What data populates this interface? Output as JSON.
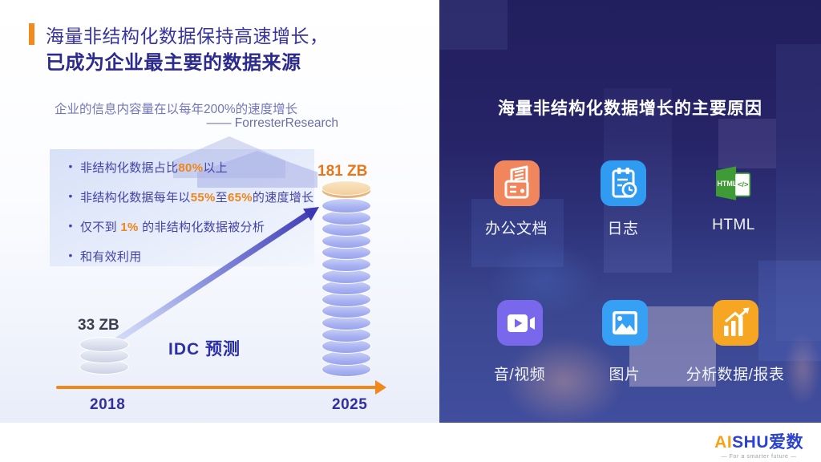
{
  "left": {
    "title_line1": "海量非结构化数据保持高速增长，",
    "title_line2": "已成为企业最主要的数据来源",
    "quote": "企业的信息内容量在以每年200%的速度增长",
    "quote_source": "—— ForresterResearch",
    "bullets": [
      [
        {
          "text": "非结构化数据占比"
        },
        {
          "text": "80%",
          "highlight": true
        },
        {
          "text": "以上"
        }
      ],
      [
        {
          "text": "非结构化数据每年以"
        },
        {
          "text": "55%",
          "highlight": true
        },
        {
          "text": "至"
        },
        {
          "text": "65%",
          "highlight": true
        },
        {
          "text": "的速度增长"
        }
      ],
      [
        {
          "text": "仅不到 "
        },
        {
          "text": "1%",
          "highlight": true
        },
        {
          "text": " 的非结构化数据被分析"
        }
      ],
      [
        {
          "text": "和有效利用"
        }
      ]
    ]
  },
  "chart_data": {
    "type": "bar",
    "title": "IDC 预测",
    "categories": [
      "2018",
      "2025"
    ],
    "values": [
      33,
      181
    ],
    "unit": "ZB",
    "value_labels": [
      "33 ZB",
      "181 ZB"
    ],
    "annotation": "企业的信息内容量在以每年200%的速度增长",
    "source": "—— ForresterResearch",
    "bar_style": "stacked-disk-cylinder",
    "cylinders": {
      "small": {
        "disks": 3,
        "cap": false
      },
      "big": {
        "disks": 15,
        "cap": true
      }
    },
    "xlabel": "",
    "ylabel": "",
    "legend": false,
    "grid": false
  },
  "right": {
    "title": "海量非结构化数据增长的主要原因",
    "reasons": [
      {
        "label": "办公文档",
        "icon": "office-doc-icon",
        "color": "#f1865c"
      },
      {
        "label": "日志",
        "icon": "log-icon",
        "color": "#2f9cf1"
      },
      {
        "label": "HTML",
        "icon": "html-icon",
        "color": "#3e9b35"
      },
      {
        "label": "音/视频",
        "icon": "video-icon",
        "color": "#7a68ec"
      },
      {
        "label": "图片",
        "icon": "image-icon",
        "color": "#35a0f4"
      },
      {
        "label": "分析数据/报表",
        "icon": "report-icon",
        "color": "#f6a623"
      }
    ]
  },
  "footer": {
    "logo_ai": "AI",
    "logo_rest": "SHU",
    "logo_cn": "爱数",
    "tagline": "— For a smarter future —"
  },
  "colors": {
    "accent_orange": "#f28a1e",
    "highlight_orange": "#f08519",
    "title_blue": "#32309c",
    "axis_orange": "#f2871c",
    "forecast_blue": "#2b2fa8",
    "big_value_orange": "#e8761b",
    "right_bg_navy": "#232161"
  }
}
